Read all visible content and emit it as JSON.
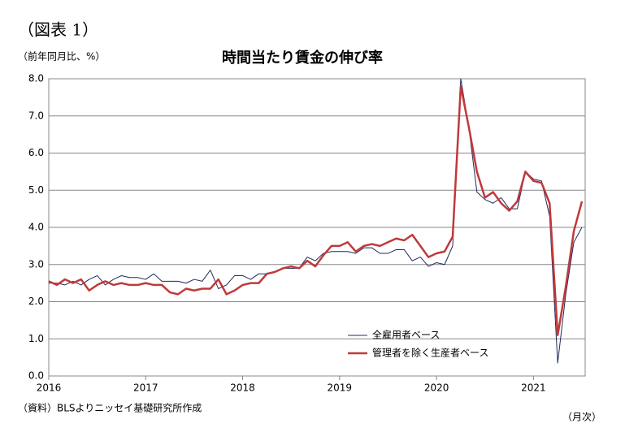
{
  "chart_data": {
    "type": "line",
    "figure_label": "（図表 1）",
    "title": "時間当たり賃金の伸び率",
    "y_label": "（前年同月比、%）",
    "x_label": "（月次）",
    "source": "（資料）BLSよりニッセイ基礎研究所作成",
    "categories": [
      "2016",
      null,
      null,
      null,
      null,
      null,
      null,
      null,
      null,
      null,
      null,
      null,
      "2017",
      null,
      null,
      null,
      null,
      null,
      null,
      null,
      null,
      null,
      null,
      null,
      "2018",
      null,
      null,
      null,
      null,
      null,
      null,
      null,
      null,
      null,
      null,
      null,
      "2019",
      null,
      null,
      null,
      null,
      null,
      null,
      null,
      null,
      null,
      null,
      null,
      "2020",
      null,
      null,
      null,
      null,
      null,
      null,
      null,
      null,
      null,
      null,
      null,
      "2021",
      null,
      null,
      null,
      null,
      null,
      null
    ],
    "series": [
      {
        "name": "全雇用者ベース",
        "color": "#1f2a5c",
        "width": 1,
        "values": [
          2.5,
          2.5,
          2.45,
          2.55,
          2.45,
          2.6,
          2.7,
          2.45,
          2.6,
          2.7,
          2.65,
          2.65,
          2.6,
          2.75,
          2.55,
          2.55,
          2.55,
          2.5,
          2.6,
          2.55,
          2.85,
          2.35,
          2.45,
          2.7,
          2.7,
          2.6,
          2.75,
          2.75,
          2.8,
          2.9,
          2.9,
          2.9,
          3.2,
          3.1,
          3.3,
          3.35,
          3.35,
          3.35,
          3.3,
          3.45,
          3.45,
          3.3,
          3.3,
          3.4,
          3.4,
          3.1,
          3.2,
          2.95,
          3.05,
          3.0,
          3.5,
          8.0,
          6.7,
          4.95,
          4.75,
          4.65,
          4.8,
          4.5,
          4.5,
          5.5,
          5.3,
          5.25,
          4.3,
          0.35,
          2.2,
          3.6,
          4.0
        ]
      },
      {
        "name": "管理者を除く生産者ベース",
        "color": "#c0393b",
        "width": 2.5,
        "values": [
          2.55,
          2.45,
          2.6,
          2.5,
          2.6,
          2.3,
          2.45,
          2.55,
          2.45,
          2.5,
          2.45,
          2.45,
          2.5,
          2.45,
          2.45,
          2.25,
          2.2,
          2.35,
          2.3,
          2.35,
          2.35,
          2.6,
          2.2,
          2.3,
          2.45,
          2.5,
          2.5,
          2.75,
          2.8,
          2.9,
          2.95,
          2.9,
          3.1,
          2.95,
          3.25,
          3.5,
          3.5,
          3.6,
          3.35,
          3.5,
          3.55,
          3.5,
          3.6,
          3.7,
          3.65,
          3.8,
          3.5,
          3.2,
          3.3,
          3.35,
          3.75,
          7.8,
          6.7,
          5.5,
          4.8,
          4.95,
          4.65,
          4.45,
          4.7,
          5.5,
          5.25,
          5.2,
          4.65,
          1.1,
          2.4,
          3.9,
          4.7
        ]
      }
    ],
    "ylim": [
      0,
      8
    ],
    "yticks": [
      {
        "value": 0,
        "label": "0.0"
      },
      {
        "value": 1,
        "label": "1.0"
      },
      {
        "value": 2,
        "label": "2.0"
      },
      {
        "value": 3,
        "label": "3.0"
      },
      {
        "value": 4,
        "label": "4.0"
      },
      {
        "value": 5,
        "label": "5.0"
      },
      {
        "value": 6,
        "label": "6.0"
      },
      {
        "value": 7,
        "label": "7.0"
      },
      {
        "value": 8,
        "label": "8.0"
      }
    ],
    "grid": true,
    "legend": "lower-center"
  }
}
